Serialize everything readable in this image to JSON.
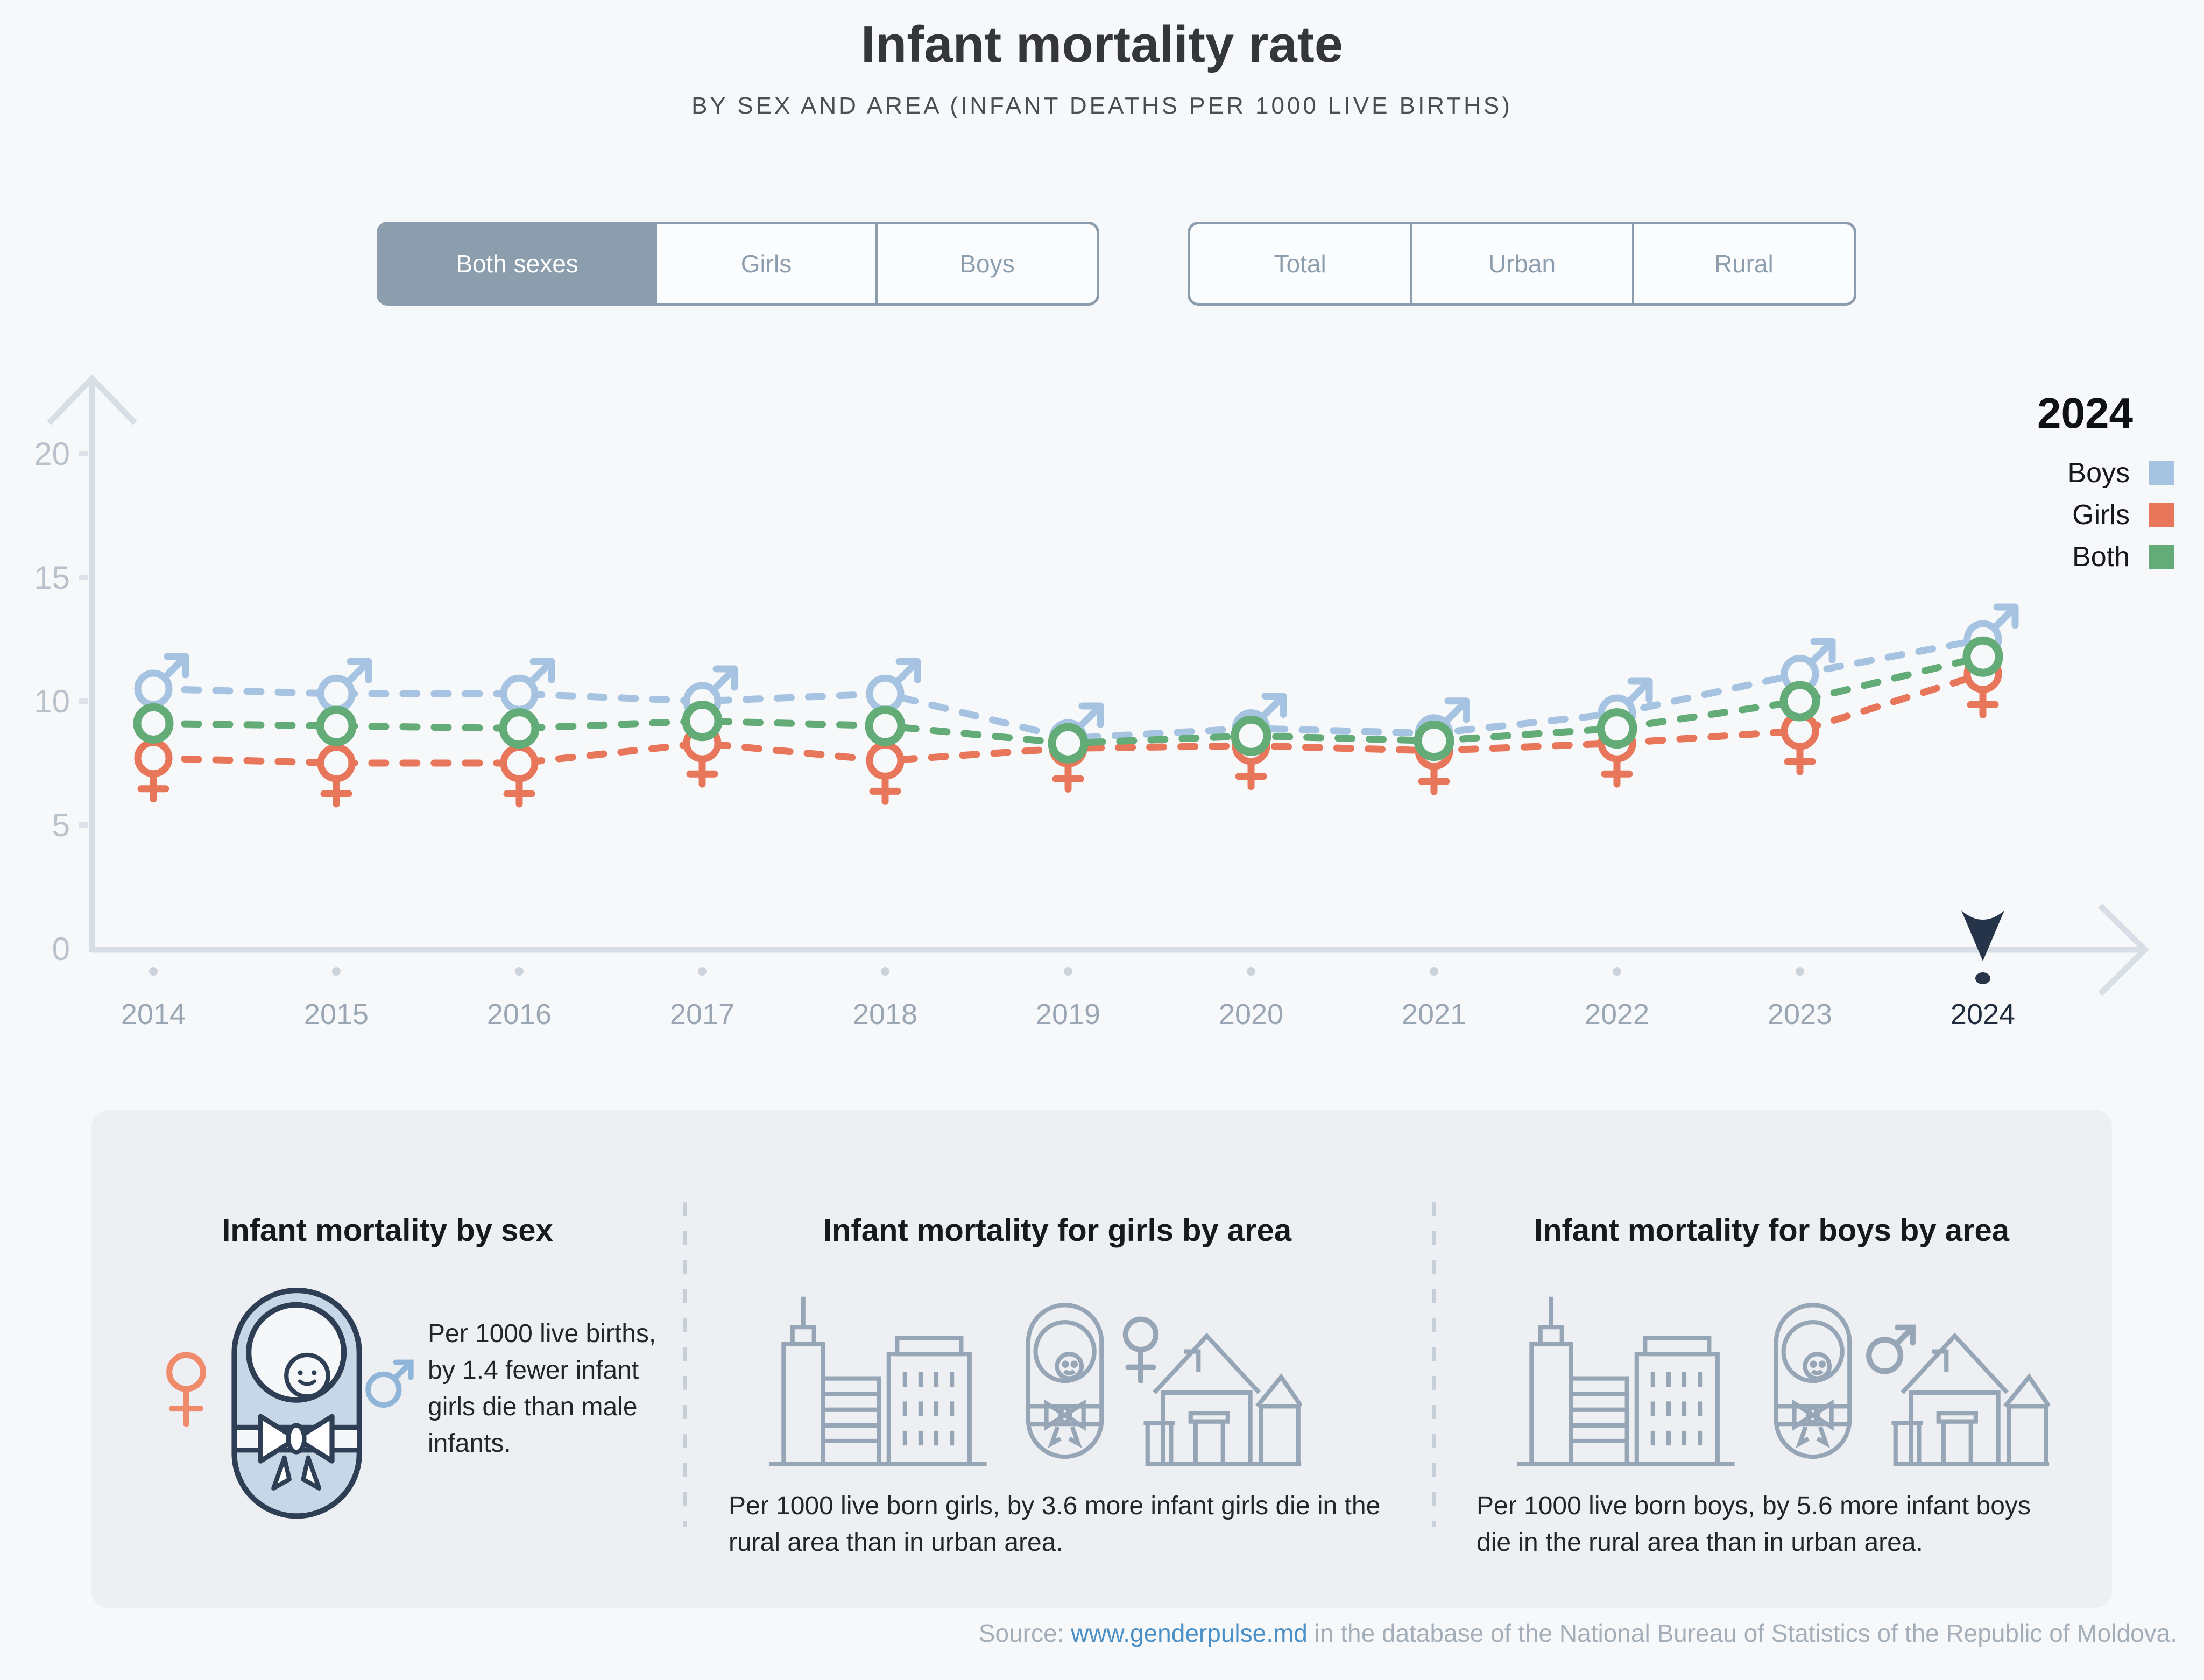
{
  "header": {
    "title": "Infant mortality rate",
    "subtitle": "BY SEX AND AREA (INFANT DEATHS PER 1000 LIVE BIRTHS)"
  },
  "controls": {
    "sex_toggle": {
      "options": [
        {
          "label": "Both sexes",
          "selected": true
        },
        {
          "label": "Girls",
          "selected": false
        },
        {
          "label": "Boys",
          "selected": false
        }
      ]
    },
    "area_toggle": {
      "options": [
        {
          "label": "Total",
          "selected": false
        },
        {
          "label": "Urban",
          "selected": false
        },
        {
          "label": "Rural",
          "selected": false
        }
      ]
    }
  },
  "legend": {
    "year": "2024",
    "items": [
      {
        "label": "Boys",
        "color": "#a6c4e2"
      },
      {
        "label": "Girls",
        "color": "#e8765b"
      },
      {
        "label": "Both",
        "color": "#63ac78"
      }
    ]
  },
  "chart_data": {
    "type": "line",
    "title": "Infant mortality rate by sex, 2014-2024",
    "x": [
      2014,
      2015,
      2016,
      2017,
      2018,
      2019,
      2020,
      2021,
      2022,
      2023,
      2024
    ],
    "series": [
      {
        "name": "Boys",
        "marker": "male",
        "color": "#a6c4e2",
        "values": [
          10.5,
          10.3,
          10.3,
          10.0,
          10.3,
          8.5,
          8.9,
          8.7,
          9.5,
          11.1,
          12.5
        ]
      },
      {
        "name": "Girls",
        "marker": "female",
        "color": "#e8765b",
        "values": [
          7.7,
          7.5,
          7.5,
          8.3,
          7.6,
          8.1,
          8.2,
          8.0,
          8.3,
          8.8,
          11.1
        ]
      },
      {
        "name": "Both",
        "marker": "circle",
        "color": "#63ac78",
        "values": [
          9.1,
          9.0,
          8.9,
          9.2,
          9.0,
          8.3,
          8.6,
          8.4,
          8.9,
          10.0,
          11.8
        ]
      }
    ],
    "yticks": [
      0,
      5,
      10,
      15,
      20
    ],
    "ylim": [
      0,
      22
    ],
    "xlabel": "",
    "ylabel": "",
    "grid": false,
    "legend_position": "top-right",
    "selected_year": 2024
  },
  "cards": [
    {
      "title": "Infant mortality by sex",
      "text": "Per 1000 live births, by 1.4 fewer infant girls die than male infants."
    },
    {
      "title": "Infant mortality for girls by area",
      "text": "Per 1000 live born girls, by 3.6 more infant girls die in the rural area than in urban area."
    },
    {
      "title": "Infant mortality for boys by area",
      "text": "Per 1000 live born boys, by 5.6 more infant boys die in the rural area than in urban area."
    }
  ],
  "footer": {
    "source_prefix": "Source: ",
    "source_link": "www.genderpulse.md",
    "source_suffix": " in the database of the National Bureau of Statistics of the Republic of Moldova."
  },
  "colors": {
    "axis": "#d8dee5",
    "tick": "#dde2e8",
    "year_dot": "#ccd3db",
    "selected_marker": "#253449",
    "marker_fill": "#f7f8fa",
    "button_slate": "#8c9eae",
    "card_bg": "#edeff2",
    "icon_gray": "#97a6b6",
    "baby_fill": "#c7d7e7",
    "baby_stroke": "#2e3e55",
    "female_accent": "#ef8a6b",
    "male_accent": "#8fb5d9"
  }
}
